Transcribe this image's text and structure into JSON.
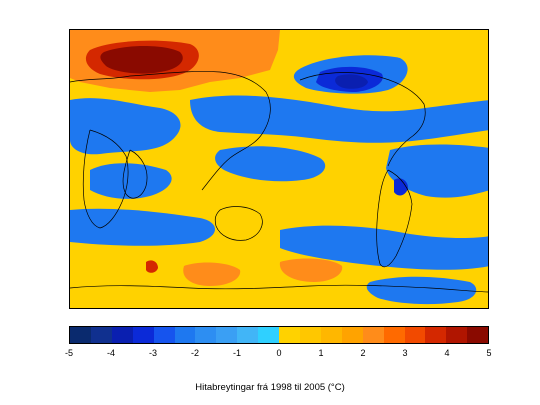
{
  "map": {
    "caption": "Hitabreytingar frá 1998 til 2005 (°C)",
    "background_color": "#ffd200"
  },
  "colorbar": {
    "min": -5,
    "max": 5,
    "step": 0.5,
    "tick_labels": [
      "-5",
      "-4",
      "-3",
      "-2",
      "-1",
      "0",
      "1",
      "2",
      "3",
      "4",
      "5"
    ],
    "colors": [
      "#0a2a6e",
      "#10308f",
      "#0a1fb0",
      "#0b2ad8",
      "#1654ee",
      "#1e78f0",
      "#2d8ef2",
      "#3a9ff4",
      "#41b5f7",
      "#2fd0ff",
      "#ffd200",
      "#ffc700",
      "#ffb700",
      "#ffa300",
      "#ff8c1a",
      "#ff6a00",
      "#f24a00",
      "#d42800",
      "#b01500",
      "#8a0a00"
    ]
  }
}
